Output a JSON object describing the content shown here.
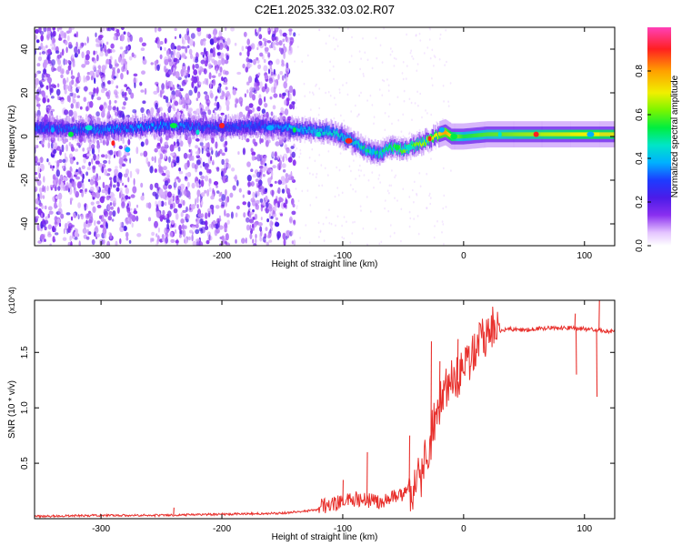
{
  "title": "C2E1.2025.332.03.02.R07",
  "chart_data": [
    {
      "type": "heatmap",
      "name": "spectrogram",
      "xlabel": "Height of straight line (km)",
      "ylabel": "Frequency (Hz)",
      "xlim": [
        -355,
        125
      ],
      "ylim": [
        -50,
        50
      ],
      "xticks": [
        -300,
        -200,
        -100,
        0,
        100
      ],
      "xtick_labels": [
        "-300",
        "-200",
        "-100",
        "0",
        "100"
      ],
      "yticks": [
        -40,
        -20,
        0,
        20,
        40
      ],
      "ytick_labels": [
        "-40",
        "-20",
        "0",
        "20",
        "40"
      ],
      "ridge": {
        "x": [
          -355,
          -300,
          -250,
          -200,
          -170,
          -150,
          -130,
          -110,
          -100,
          -90,
          -80,
          -70,
          -60,
          -50,
          -40,
          -30,
          -20,
          -15,
          -10,
          0,
          20,
          50,
          100,
          125
        ],
        "y": [
          4,
          3,
          5,
          4,
          5,
          4,
          3,
          2,
          0,
          -3,
          -6,
          -8,
          -5,
          -6,
          -4,
          -2,
          1,
          2,
          0,
          0,
          1,
          1,
          1,
          1
        ],
        "amplitude": [
          0.3,
          0.35,
          0.35,
          0.3,
          0.3,
          0.35,
          0.4,
          0.45,
          0.45,
          0.45,
          0.5,
          0.5,
          0.55,
          0.6,
          0.6,
          0.65,
          0.75,
          0.8,
          0.7,
          0.55,
          0.6,
          0.65,
          0.7,
          0.7
        ]
      },
      "colorbar": {
        "label": "Normalized spectral amplitude",
        "range": [
          0,
          1
        ],
        "ticks": [
          "0.0",
          "0.2",
          "0.4",
          "0.6",
          "0.8"
        ],
        "tick_values": [
          0,
          0.2,
          0.4,
          0.6,
          0.8
        ]
      }
    },
    {
      "type": "line",
      "name": "snr",
      "xlabel": "Height of straight line (km)",
      "ylabel": "SNR (10 * v/v)",
      "y_multiplier": "(x10^4)",
      "xlim": [
        -355,
        125
      ],
      "ylim": [
        0,
        1.97
      ],
      "xticks": [
        -300,
        -200,
        -100,
        0,
        100
      ],
      "xtick_labels": [
        "-300",
        "-200",
        "-100",
        "0",
        "100"
      ],
      "yticks": [
        0.5,
        1.0,
        1.5
      ],
      "ytick_labels": [
        "0.5",
        "1.0",
        "1.5"
      ],
      "color": "#e8302c",
      "series": [
        {
          "name": "SNR",
          "x": [
            -355,
            -300,
            -250,
            -200,
            -150,
            -120,
            -100,
            -90,
            -80,
            -70,
            -60,
            -50,
            -40,
            -35,
            -30,
            -25,
            -20,
            -15,
            -10,
            -5,
            0,
            5,
            10,
            15,
            20,
            25,
            30,
            40,
            50,
            60,
            70,
            80,
            90,
            100,
            110,
            125
          ],
          "y": [
            0.02,
            0.03,
            0.03,
            0.04,
            0.05,
            0.08,
            0.12,
            0.15,
            0.14,
            0.13,
            0.16,
            0.2,
            0.28,
            0.38,
            0.55,
            0.8,
            1.0,
            1.12,
            1.2,
            1.25,
            1.3,
            1.4,
            1.52,
            1.62,
            1.67,
            1.69,
            1.7,
            1.71,
            1.7,
            1.71,
            1.72,
            1.72,
            1.72,
            1.71,
            1.7,
            1.69
          ]
        }
      ],
      "spikes": [
        {
          "x": -240,
          "y": 0.1
        },
        {
          "x": -100,
          "y": 0.35
        },
        {
          "x": -80,
          "y": 0.6
        },
        {
          "x": -45,
          "y": 0.75
        },
        {
          "x": -27,
          "y": 1.6
        },
        {
          "x": -20,
          "y": 1.42
        },
        {
          "x": -5,
          "y": 1.62
        },
        {
          "x": 25,
          "y": 1.62
        },
        {
          "x": 92,
          "y": 1.85
        },
        {
          "x": 93,
          "y": 1.3
        },
        {
          "x": 110,
          "y": 1.1
        },
        {
          "x": 112,
          "y": 1.97
        }
      ]
    }
  ]
}
